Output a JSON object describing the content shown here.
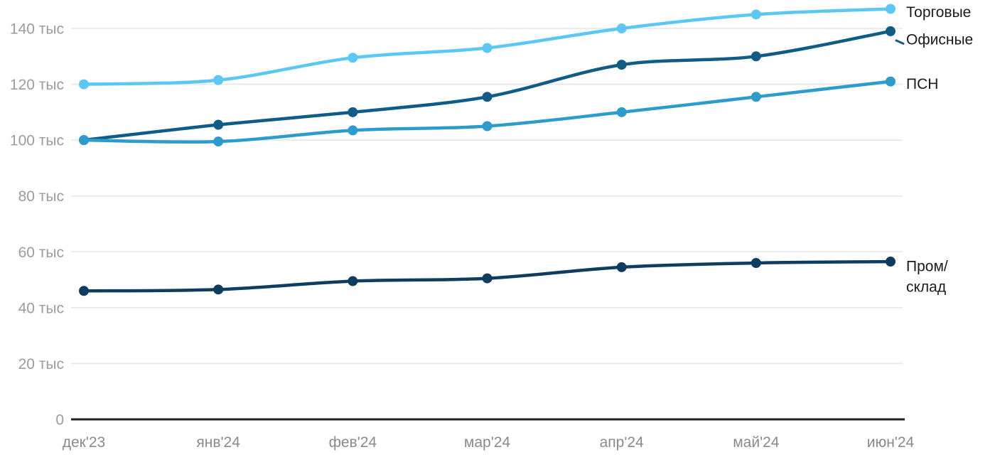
{
  "chart_data": {
    "type": "line",
    "title": "",
    "xlabel": "",
    "ylabel": "",
    "unit": "тыс",
    "grid": true,
    "legend_position": "right-of-line-ends",
    "ylim": [
      0,
      150
    ],
    "x": [
      "дек'23",
      "янв'24",
      "фев'24",
      "мар'24",
      "апр'24",
      "май'24",
      "июн'24"
    ],
    "y_ticks": [
      {
        "value": 0,
        "label": "0"
      },
      {
        "value": 20,
        "label": "20 тыс"
      },
      {
        "value": 40,
        "label": "40 тыс"
      },
      {
        "value": 60,
        "label": "60 тыс"
      },
      {
        "value": 80,
        "label": "80 тыс"
      },
      {
        "value": 100,
        "label": "100 тыс"
      },
      {
        "value": 120,
        "label": "120 тыс"
      },
      {
        "value": 140,
        "label": "140 тыс"
      }
    ],
    "series": [
      {
        "name": "Торговые",
        "color": "#5bc8f4",
        "values": [
          120,
          121.5,
          129.5,
          133,
          140,
          145,
          147
        ],
        "label_lines": [
          "Торговые"
        ],
        "label_dy": 4,
        "leader_dash": false
      },
      {
        "name": "Офисные",
        "color": "#0f5c86",
        "values": [
          100,
          105.5,
          110,
          115.5,
          127,
          130,
          139
        ],
        "label_lines": [
          "Офисные"
        ],
        "label_dy": 11,
        "leader_dash": true
      },
      {
        "name": "ПСН",
        "color": "#2b9ccc",
        "values": [
          100,
          99.5,
          103.5,
          105,
          110,
          115.5,
          121
        ],
        "label_lines": [
          "ПСН"
        ],
        "label_dy": 3,
        "leader_dash": false
      },
      {
        "name": "Пром/склад",
        "color": "#0e3d5f",
        "values": [
          46,
          46.5,
          49.5,
          50.5,
          54.5,
          56,
          56.5
        ],
        "label_lines": [
          "Пром/",
          "склад"
        ],
        "label_dy": 6,
        "leader_dash": false
      }
    ],
    "colors": {
      "background": "#ffffff",
      "grid": "#e8e8e8",
      "axis_line": "#212121",
      "y_tick_text": "#9c9c9c",
      "x_tick_text": "#8a8a8a",
      "series_label_text": "#1b1b1b"
    }
  }
}
